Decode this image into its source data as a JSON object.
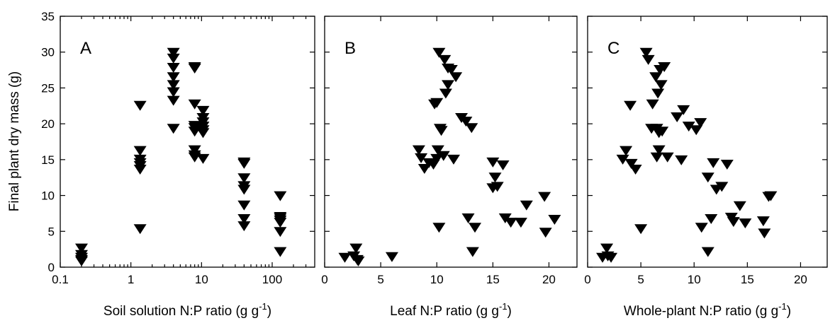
{
  "chart_data": {
    "type": "scatter",
    "marker": "filled-down-triangle",
    "marker_color": "#000000",
    "ylabel": "Final plant dry mass (g)",
    "ylim": [
      0,
      35
    ],
    "yticks": [
      0,
      5,
      10,
      15,
      20,
      25,
      30,
      35
    ],
    "grid": false,
    "panels": [
      {
        "letter": "A",
        "xlabel": "Soil solution N:P ratio (g g",
        "xlabel_sup": "-1",
        "xlabel_end": ")",
        "xscale": "log",
        "xlim": [
          0.1,
          400
        ],
        "xticks": [
          0.1,
          1,
          10,
          100
        ],
        "xtick_labels": [
          "0.1",
          "1",
          "10",
          "100"
        ],
        "minor_xticks": [
          0.2,
          0.3,
          0.4,
          0.5,
          0.6,
          0.7,
          0.8,
          0.9,
          2,
          3,
          4,
          5,
          6,
          7,
          8,
          9,
          20,
          30,
          40,
          50,
          60,
          70,
          80,
          90,
          200,
          300
        ],
        "points": [
          [
            0.2,
            2.7
          ],
          [
            0.2,
            1.8
          ],
          [
            0.2,
            1.4
          ],
          [
            0.2,
            1.1
          ],
          [
            0.2,
            0.9
          ],
          [
            1.35,
            22.6
          ],
          [
            1.35,
            16.3
          ],
          [
            1.35,
            15.1
          ],
          [
            1.35,
            14.6
          ],
          [
            1.35,
            14.2
          ],
          [
            1.35,
            13.7
          ],
          [
            1.35,
            5.4
          ],
          [
            4.0,
            30.0
          ],
          [
            4.0,
            29.2
          ],
          [
            4.0,
            27.9
          ],
          [
            4.0,
            26.6
          ],
          [
            4.0,
            25.5
          ],
          [
            4.0,
            24.5
          ],
          [
            4.0,
            23.3
          ],
          [
            4.0,
            19.4
          ],
          [
            8.0,
            28.0
          ],
          [
            8.0,
            27.8
          ],
          [
            8.0,
            22.8
          ],
          [
            8.0,
            19.8
          ],
          [
            8.0,
            19.5
          ],
          [
            8.0,
            19.0
          ],
          [
            8.0,
            16.4
          ],
          [
            8.0,
            15.7
          ],
          [
            8.0,
            15.4
          ],
          [
            10.5,
            21.9
          ],
          [
            10.5,
            20.9
          ],
          [
            10.5,
            20.3
          ],
          [
            10.5,
            19.7
          ],
          [
            10.5,
            19.2
          ],
          [
            10.5,
            18.8
          ],
          [
            10.5,
            15.2
          ],
          [
            40.0,
            14.7
          ],
          [
            40.0,
            14.5
          ],
          [
            40.0,
            12.5
          ],
          [
            40.0,
            11.4
          ],
          [
            40.0,
            10.9
          ],
          [
            40.0,
            8.7
          ],
          [
            40.0,
            6.8
          ],
          [
            40.0,
            5.8
          ],
          [
            130.0,
            10.0
          ],
          [
            130.0,
            7.1
          ],
          [
            130.0,
            6.9
          ],
          [
            130.0,
            6.6
          ],
          [
            130.0,
            6.3
          ],
          [
            130.0,
            5.0
          ],
          [
            130.0,
            2.2
          ]
        ]
      },
      {
        "letter": "B",
        "xlabel": "Leaf N:P ratio (g g",
        "xlabel_sup": "-1",
        "xlabel_end": ")",
        "xscale": "linear",
        "xlim": [
          0,
          22.5
        ],
        "xticks": [
          0,
          5,
          10,
          15,
          20
        ],
        "xtick_labels": [
          "0",
          "5",
          "10",
          "15",
          "20"
        ],
        "minor_xticks": [],
        "points": [
          [
            1.8,
            1.4
          ],
          [
            2.6,
            1.6
          ],
          [
            2.8,
            2.7
          ],
          [
            2.9,
            1.1
          ],
          [
            3.0,
            0.9
          ],
          [
            6.0,
            1.5
          ],
          [
            8.4,
            16.4
          ],
          [
            8.6,
            15.3
          ],
          [
            8.9,
            13.8
          ],
          [
            9.3,
            14.6
          ],
          [
            9.7,
            14.4
          ],
          [
            9.8,
            22.8
          ],
          [
            10.0,
            23.0
          ],
          [
            10.0,
            15.2
          ],
          [
            10.1,
            16.4
          ],
          [
            10.2,
            30.0
          ],
          [
            10.2,
            5.6
          ],
          [
            10.3,
            19.4
          ],
          [
            10.4,
            19.1
          ],
          [
            10.6,
            15.6
          ],
          [
            10.7,
            29.0
          ],
          [
            10.8,
            24.3
          ],
          [
            11.0,
            27.8
          ],
          [
            11.0,
            25.5
          ],
          [
            11.3,
            27.6
          ],
          [
            11.5,
            15.1
          ],
          [
            11.7,
            26.6
          ],
          [
            12.2,
            20.9
          ],
          [
            12.6,
            20.4
          ],
          [
            12.8,
            6.9
          ],
          [
            13.1,
            19.5
          ],
          [
            13.2,
            2.2
          ],
          [
            13.4,
            5.6
          ],
          [
            15.0,
            14.7
          ],
          [
            15.0,
            11.1
          ],
          [
            15.2,
            12.6
          ],
          [
            15.4,
            11.3
          ],
          [
            15.9,
            14.3
          ],
          [
            16.1,
            6.9
          ],
          [
            16.6,
            6.3
          ],
          [
            17.5,
            6.3
          ],
          [
            18.0,
            8.7
          ],
          [
            19.6,
            9.9
          ],
          [
            19.7,
            4.9
          ],
          [
            20.5,
            6.7
          ]
        ]
      },
      {
        "letter": "C",
        "xlabel": "Whole-plant N:P ratio (g g",
        "xlabel_sup": "-1",
        "xlabel_end": ")",
        "xscale": "linear",
        "xlim": [
          0,
          22.5
        ],
        "xticks": [
          0,
          5,
          10,
          15,
          20
        ],
        "xtick_labels": [
          "0",
          "5",
          "10",
          "15",
          "20"
        ],
        "minor_xticks": [],
        "points": [
          [
            1.4,
            1.4
          ],
          [
            1.8,
            2.7
          ],
          [
            1.9,
            1.6
          ],
          [
            2.2,
            1.4
          ],
          [
            3.3,
            15.1
          ],
          [
            3.6,
            16.3
          ],
          [
            4.0,
            22.6
          ],
          [
            4.1,
            14.5
          ],
          [
            4.5,
            13.7
          ],
          [
            5.0,
            5.4
          ],
          [
            5.5,
            30.0
          ],
          [
            5.7,
            29.0
          ],
          [
            6.0,
            19.4
          ],
          [
            6.1,
            22.8
          ],
          [
            6.4,
            26.6
          ],
          [
            6.5,
            19.4
          ],
          [
            6.5,
            15.4
          ],
          [
            6.6,
            24.3
          ],
          [
            6.7,
            16.4
          ],
          [
            6.7,
            18.8
          ],
          [
            6.8,
            27.6
          ],
          [
            6.9,
            25.5
          ],
          [
            7.0,
            19.0
          ],
          [
            7.2,
            28.0
          ],
          [
            7.5,
            15.4
          ],
          [
            8.4,
            21.0
          ],
          [
            8.8,
            15.0
          ],
          [
            9.0,
            22.0
          ],
          [
            9.5,
            19.7
          ],
          [
            10.2,
            19.2
          ],
          [
            10.6,
            20.2
          ],
          [
            10.7,
            5.6
          ],
          [
            11.3,
            12.6
          ],
          [
            11.3,
            2.2
          ],
          [
            11.6,
            6.8
          ],
          [
            11.8,
            14.6
          ],
          [
            12.1,
            10.9
          ],
          [
            12.6,
            11.3
          ],
          [
            13.1,
            14.4
          ],
          [
            13.5,
            7.0
          ],
          [
            13.7,
            6.4
          ],
          [
            14.3,
            8.6
          ],
          [
            14.8,
            6.2
          ],
          [
            16.5,
            6.5
          ],
          [
            16.6,
            4.8
          ],
          [
            17.0,
            9.9
          ],
          [
            17.2,
            10.0
          ]
        ]
      }
    ]
  }
}
